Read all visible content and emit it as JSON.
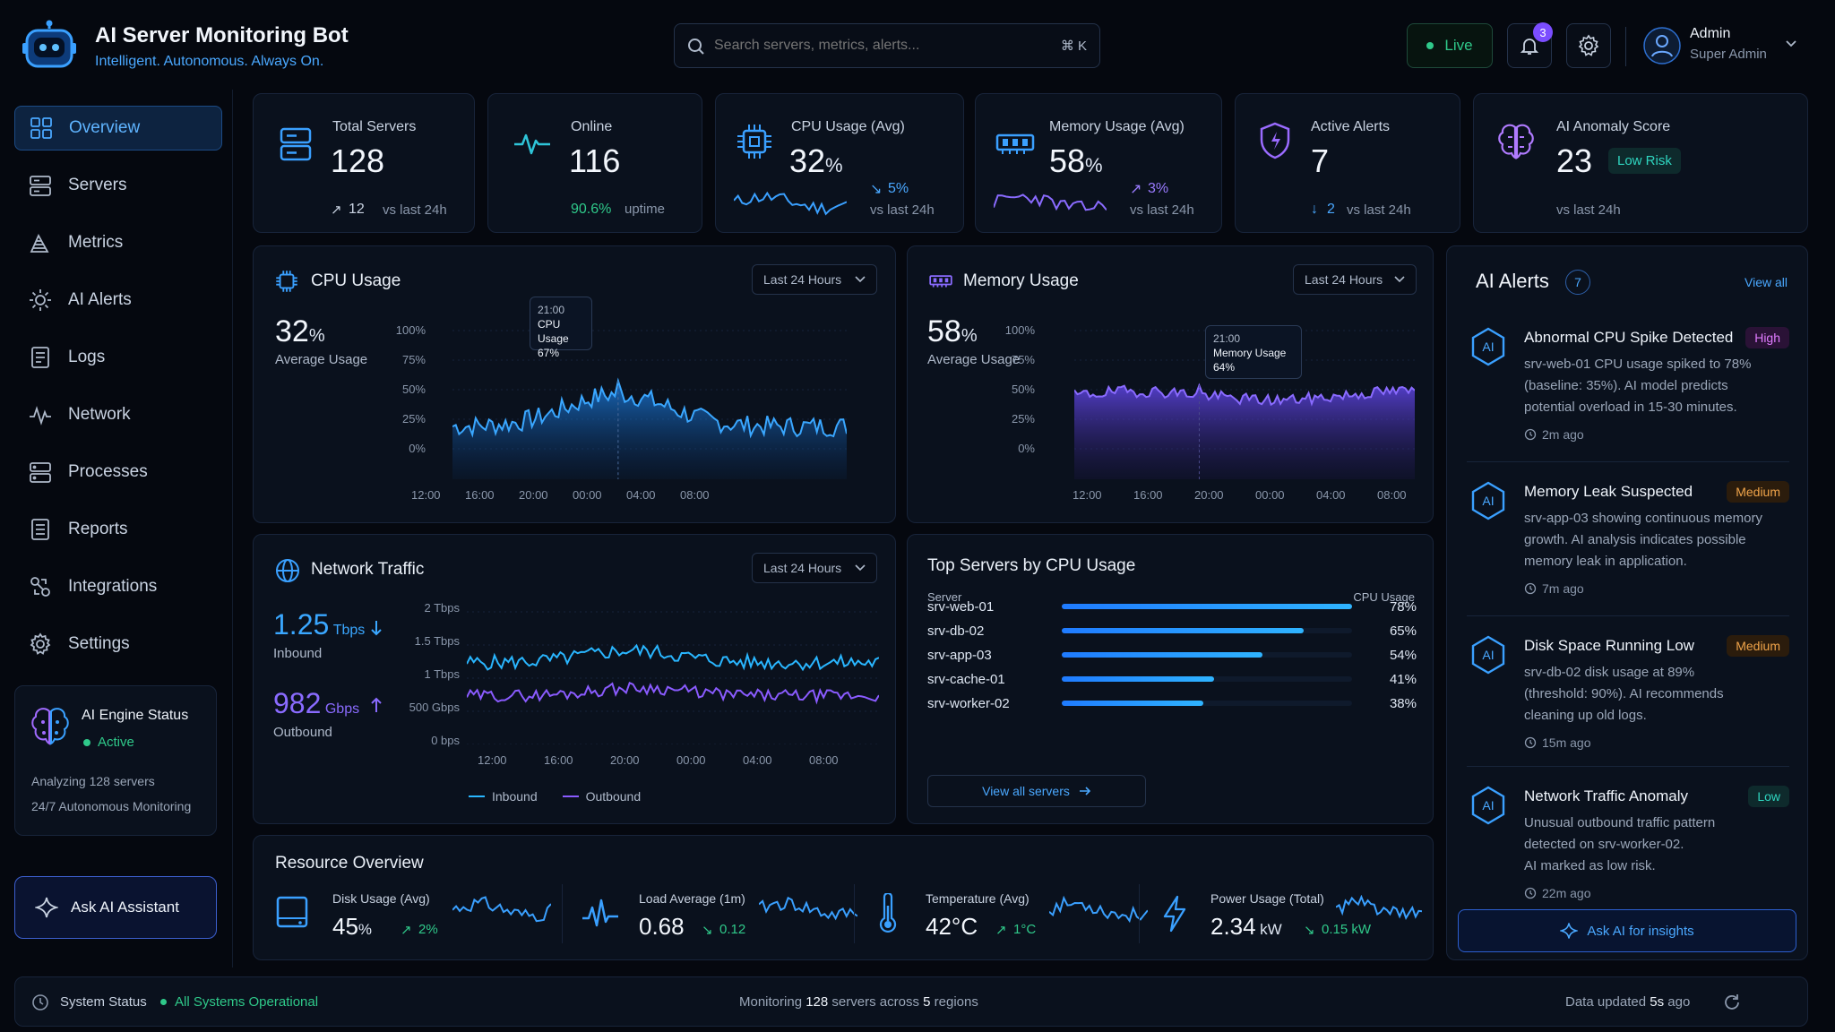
{
  "app": {
    "title": "AI Server Monitoring Bot",
    "tagline": "Intelligent. Autonomous. Always On."
  },
  "search": {
    "placeholder": "Search servers, metrics, alerts...",
    "shortcut": "⌘ K"
  },
  "header": {
    "live_label": "Live",
    "notification_count": "3",
    "user_name": "Admin",
    "user_role": "Super Admin"
  },
  "sidebar": {
    "items": [
      {
        "label": "Overview",
        "icon": "grid-icon",
        "active": true
      },
      {
        "label": "Servers",
        "icon": "server-icon"
      },
      {
        "label": "Metrics",
        "icon": "metrics-icon"
      },
      {
        "label": "AI Alerts",
        "icon": "sun-icon"
      },
      {
        "label": "Logs",
        "icon": "document-icon"
      },
      {
        "label": "Network",
        "icon": "pulse-icon"
      },
      {
        "label": "Processes",
        "icon": "process-icon"
      },
      {
        "label": "Reports",
        "icon": "report-icon"
      },
      {
        "label": "Integrations",
        "icon": "integration-icon"
      },
      {
        "label": "Settings",
        "icon": "gear-icon"
      }
    ],
    "engine": {
      "title": "AI Engine Status",
      "status": "Active",
      "line1": "Analyzing 128 servers",
      "line2": "24/7 Autonomous Monitoring"
    },
    "ask_button": "Ask AI Assistant"
  },
  "kpis": {
    "total_servers": {
      "label": "Total Servers",
      "value": "128",
      "change": "12",
      "sub": "vs last 24h"
    },
    "online": {
      "label": "Online",
      "value": "116",
      "uptime_pct": "90.6%",
      "sub": "uptime"
    },
    "cpu": {
      "label": "CPU Usage (Avg)",
      "value": "32",
      "unit": "%",
      "change": "5%",
      "sub": "vs last 24h"
    },
    "memory": {
      "label": "Memory Usage (Avg)",
      "value": "58",
      "unit": "%",
      "change": "3%",
      "sub": "vs last 24h"
    },
    "alerts": {
      "label": "Active Alerts",
      "value": "7",
      "change": "2",
      "sub": "vs last 24h"
    },
    "anomaly": {
      "label": "AI Anomaly Score",
      "value": "23",
      "risk": "Low Risk",
      "sub": "vs last 24h"
    }
  },
  "cpu_panel": {
    "title": "CPU Usage",
    "range": "Last 24 Hours",
    "value": "32",
    "unit": "%",
    "caption": "Average Usage",
    "yticks": [
      "100%",
      "75%",
      "50%",
      "25%",
      "0%"
    ],
    "xticks": [
      "12:00",
      "16:00",
      "20:00",
      "00:00",
      "04:00",
      "08:00"
    ],
    "tooltip": {
      "time": "21:00",
      "label": "CPU Usage",
      "value": "67%"
    }
  },
  "mem_panel": {
    "title": "Memory Usage",
    "range": "Last 24 Hours",
    "value": "58",
    "unit": "%",
    "caption": "Average Usage",
    "yticks": [
      "100%",
      "75%",
      "50%",
      "25%",
      "0%"
    ],
    "xticks": [
      "12:00",
      "16:00",
      "20:00",
      "00:00",
      "04:00",
      "08:00"
    ],
    "tooltip": {
      "time": "21:00",
      "label": "Memory Usage",
      "value": "64%"
    }
  },
  "net_panel": {
    "title": "Network Traffic",
    "range": "Last 24 Hours",
    "inbound_value": "1.25",
    "inbound_unit": "Tbps",
    "inbound_label": "Inbound",
    "outbound_value": "982",
    "outbound_unit": "Gbps",
    "outbound_label": "Outbound",
    "yticks": [
      "2 Tbps",
      "1.5 Tbps",
      "1 Tbps",
      "500 Gbps",
      "0 bps"
    ],
    "xticks": [
      "12:00",
      "16:00",
      "20:00",
      "00:00",
      "04:00",
      "08:00"
    ],
    "legend": [
      "Inbound",
      "Outbound"
    ]
  },
  "top_servers": {
    "title": "Top Servers by CPU Usage",
    "col_server": "Server",
    "col_cpu": "CPU Usage",
    "rows": [
      {
        "name": "srv-web-01",
        "pct": "78%",
        "value": 78
      },
      {
        "name": "srv-db-02",
        "pct": "65%",
        "value": 65
      },
      {
        "name": "srv-app-03",
        "pct": "54%",
        "value": 54
      },
      {
        "name": "srv-cache-01",
        "pct": "41%",
        "value": 41
      },
      {
        "name": "srv-worker-02",
        "pct": "38%",
        "value": 38
      }
    ],
    "view_all": "View all servers"
  },
  "resources": {
    "title": "Resource Overview",
    "disk": {
      "label": "Disk Usage (Avg)",
      "value": "45",
      "unit": "%",
      "change": "2%"
    },
    "load": {
      "label": "Load Average (1m)",
      "value": "0.68",
      "change": "0.12"
    },
    "temp": {
      "label": "Temperature (Avg)",
      "value": "42°C",
      "change": "1°C"
    },
    "power": {
      "label": "Power Usage (Total)",
      "value": "2.34",
      "unit": "kW",
      "change": "0.15 kW"
    }
  },
  "ai_alerts": {
    "title": "AI Alerts",
    "count": "7",
    "view_all": "View all",
    "items": [
      {
        "title": "Abnormal CPU Spike Detected",
        "severity": "High",
        "d1": "srv-web-01 CPU usage spiked to 78%",
        "d2": "(baseline: 35%). AI model predicts",
        "d3": "potential overload in 15-30 minutes.",
        "time": "2m ago"
      },
      {
        "title": "Memory Leak Suspected",
        "severity": "Medium",
        "d1": "srv-app-03 showing continuous memory",
        "d2": "growth. AI analysis indicates possible",
        "d3": "memory leak in application.",
        "time": "7m ago"
      },
      {
        "title": "Disk Space Running Low",
        "severity": "Medium",
        "d1": "srv-db-02 disk usage at 89%",
        "d2": "(threshold: 90%). AI recommends",
        "d3": "cleaning up old logs.",
        "time": "15m ago"
      },
      {
        "title": "Network Traffic Anomaly",
        "severity": "Low",
        "d1": "Unusual outbound traffic pattern",
        "d2": "detected on srv-worker-02.",
        "d3": "AI marked as low risk.",
        "time": "22m ago"
      }
    ],
    "ask_button": "Ask AI for insights"
  },
  "footer": {
    "status_label": "System Status",
    "status_value": "All Systems Operational",
    "monitoring_pre": "Monitoring",
    "monitoring_servers": "128",
    "monitoring_mid": "servers across",
    "monitoring_regions": "5",
    "monitoring_post": "regions",
    "updated_pre": "Data updated",
    "updated_value": "5s",
    "updated_post": "ago"
  },
  "colors": {
    "accent": "#3aa0ff",
    "purple": "#8a6bff",
    "green": "#2fc98a",
    "high": "#e07bff",
    "medium": "#f0a44a"
  }
}
